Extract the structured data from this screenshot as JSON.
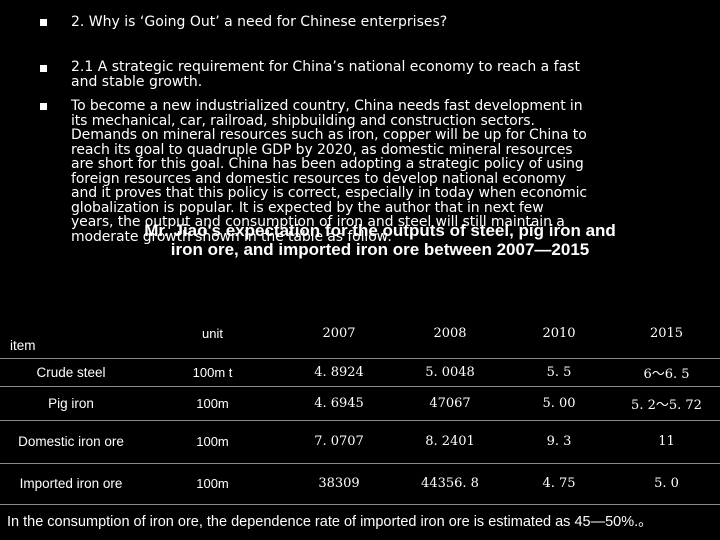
{
  "bullets": [
    "2. Why is ‘Going Out’ a need for Chinese enterprises?",
    "2.1 A strategic requirement for China’s national economy to reach a fast\nand stable growth.",
    "To become a new industrialized country, China needs fast development in\nits mechanical, car, railroad, shipbuilding and construction sectors.\nDemands on mineral resources such as iron, copper will be up for China to\nreach its goal to quadruple GDP by 2020, as domestic mineral resources\nare short for this goal. China has been adopting a strategic policy of using\nforeign resources and domestic resources to develop national economy\nand it proves that this policy is correct, especially in today when economic\nglobalization is popular. It is expected by the author that in next few\nyears, the output and consumption of iron and steel will still maintain a\nmoderate growth shown in the table as follow:"
  ],
  "overlay_title": "Mr. Jiao's expectation for the outputs of steel, pig iron and\niron ore, and imported iron ore between 2007—2015",
  "table": {
    "headers": [
      "item",
      "unit",
      "2007",
      "2008",
      "2010",
      "2015"
    ],
    "rows": [
      [
        "Crude steel",
        "100m t",
        "4. 8924",
        "5. 0048",
        "5. 5",
        "6～6. 5"
      ],
      [
        "Pig iron",
        "100m",
        "4. 6945",
        "47067",
        "5. 00",
        "5. 2～5. 72"
      ],
      [
        "Domestic iron ore",
        "100m",
        "7. 0707",
        "8. 2401",
        "9. 3",
        "11"
      ],
      [
        "Imported iron ore",
        "100m",
        "38309",
        "44356. 8",
        "4. 75",
        "5. 0"
      ]
    ]
  },
  "footnote": "In the consumption of iron ore, the dependence rate of imported iron ore is estimated as 45—50%.。"
}
